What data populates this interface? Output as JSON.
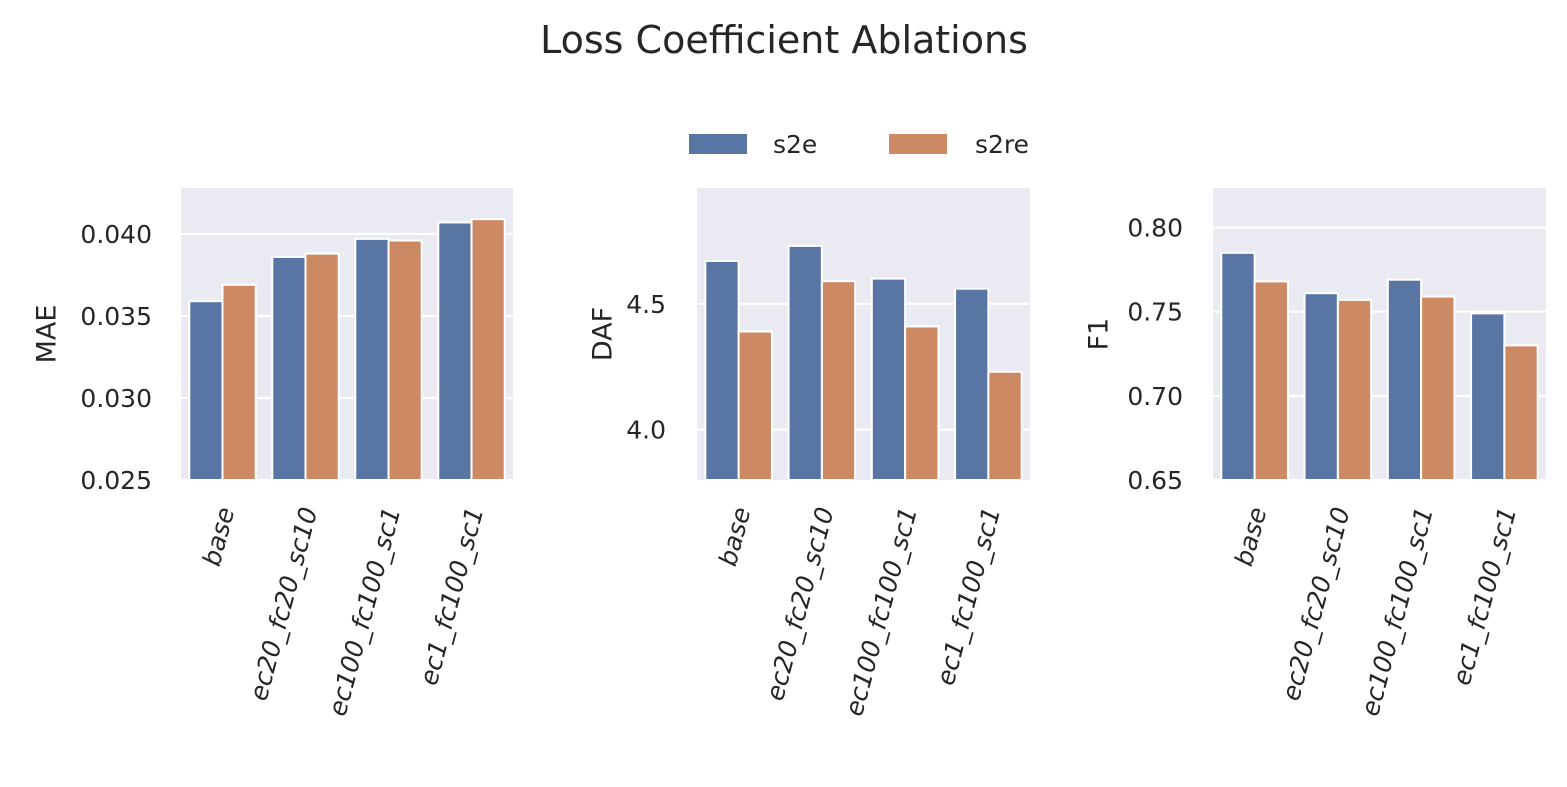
{
  "title": "Loss Coefficient Ablations",
  "legend": {
    "placement": "top-center",
    "items": [
      {
        "label": "s2e",
        "color": "#5875a4"
      },
      {
        "label": "s2re",
        "color": "#cc8963"
      }
    ]
  },
  "style": {
    "axes_bg": "#eaeaf2",
    "grid_color": "#ffffff",
    "text_color": "#262626"
  },
  "chart_data": [
    {
      "type": "bar",
      "title": "",
      "xlabel": "",
      "ylabel": "MAE",
      "ylim": [
        0.025,
        0.0428
      ],
      "yticks": [
        0.025,
        0.03,
        0.035,
        0.04
      ],
      "ytick_labels": [
        "0.025",
        "0.030",
        "0.035",
        "0.040"
      ],
      "grid": true,
      "categories": [
        "base",
        "ec20_fc20_sc10",
        "ec100_fc100_sc1",
        "ec1_fc100_sc1"
      ],
      "series": [
        {
          "name": "s2e",
          "values": [
            0.0359,
            0.0386,
            0.0397,
            0.0407
          ]
        },
        {
          "name": "s2re",
          "values": [
            0.0369,
            0.0388,
            0.0396,
            0.0409
          ]
        }
      ]
    },
    {
      "type": "bar",
      "title": "",
      "xlabel": "",
      "ylabel": "DAF",
      "ylim": [
        3.8,
        4.96
      ],
      "yticks": [
        4.0,
        4.5
      ],
      "ytick_labels": [
        "4.0",
        "4.5"
      ],
      "grid": true,
      "categories": [
        "base",
        "ec20_fc20_sc10",
        "ec100_fc100_sc1",
        "ec1_fc100_sc1"
      ],
      "series": [
        {
          "name": "s2e",
          "values": [
            4.67,
            4.73,
            4.6,
            4.56
          ]
        },
        {
          "name": "s2re",
          "values": [
            4.39,
            4.59,
            4.41,
            4.23
          ]
        }
      ]
    },
    {
      "type": "bar",
      "title": "",
      "xlabel": "",
      "ylabel": "F1",
      "ylim": [
        0.65,
        0.8235
      ],
      "yticks": [
        0.65,
        0.7,
        0.75,
        0.8
      ],
      "ytick_labels": [
        "0.65",
        "0.70",
        "0.75",
        "0.80"
      ],
      "grid": true,
      "categories": [
        "base",
        "ec20_fc20_sc10",
        "ec100_fc100_sc1",
        "ec1_fc100_sc1"
      ],
      "series": [
        {
          "name": "s2e",
          "values": [
            0.785,
            0.761,
            0.769,
            0.749
          ]
        },
        {
          "name": "s2re",
          "values": [
            0.768,
            0.757,
            0.759,
            0.73
          ]
        }
      ]
    }
  ]
}
